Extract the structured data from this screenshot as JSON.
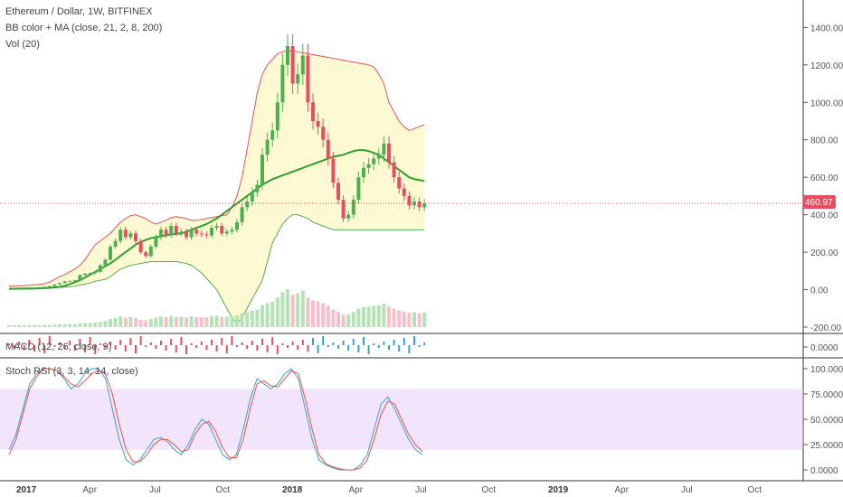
{
  "header": {
    "title": "Ethereum / Dollar, 1W, BITFINEX",
    "indicator_1": "BB color + MA (close, 21, 2, 8, 200)",
    "indicator_2": "Vol (20)"
  },
  "price_badge": {
    "value": "460.97",
    "color": "#e84e5f"
  },
  "colors": {
    "up": "#4caf50",
    "down": "#e84e5f",
    "ma": "#2e9e2e",
    "bb_upper": "#e84e5f",
    "bb_lower": "#4caf50",
    "bb_fill_yellow": "#fbf6b6",
    "bb_fill_pink": "#fce4ec",
    "dot_yellow": "#f4c20d",
    "dot_red": "#e84e5f",
    "dot_green": "#7dc855",
    "rsi_band": "#e3c9f8",
    "rsi_k": "#3a9fd8",
    "rsi_d": "#e8523b"
  },
  "main_axis": {
    "ticks": [
      "1400.00",
      "1200.00",
      "1000.00",
      "800.00",
      "600.00",
      "400.00",
      "200.00",
      "0.00",
      "-200.00"
    ]
  },
  "macd_panel": {
    "label": "MACD (12, 26, close, 9)",
    "tick": "0.0000"
  },
  "rsi_panel": {
    "label": "Stoch RSI (3, 3, 14, 14, close)",
    "ticks": [
      "100.0000",
      "75.0000",
      "50.0000",
      "25.0000",
      "0.0000"
    ]
  },
  "x_axis": {
    "labels": [
      "2017",
      "Apr",
      "Jul",
      "Oct",
      "2018",
      "Apr",
      "Jul",
      "Oct",
      "2019",
      "Apr",
      "Jul",
      "Oct"
    ],
    "bold": [
      "2017",
      "2018",
      "2019"
    ]
  },
  "chart_data": [
    {
      "type": "candlestick",
      "title": "Ethereum / Dollar, 1W, BITFINEX",
      "ylim": [
        -200,
        1450
      ],
      "x_start": "2017-01-02",
      "candle_interval": "1W",
      "close": [
        8,
        9,
        10,
        10.5,
        11,
        11.5,
        13,
        15,
        19,
        28,
        35,
        44,
        47,
        50,
        78,
        85,
        88,
        95,
        130,
        160,
        230,
        260,
        320,
        280,
        300,
        260,
        200,
        180,
        230,
        280,
        320,
        290,
        340,
        300,
        310,
        280,
        320,
        300,
        295,
        290,
        330,
        340,
        300,
        310,
        320,
        360,
        440,
        470,
        520,
        560,
        720,
        800,
        850,
        1000,
        1200,
        1300,
        1100,
        1150,
        1250,
        1000,
        900,
        870,
        800,
        700,
        570,
        480,
        380,
        400,
        480,
        600,
        650,
        670,
        700,
        720,
        780,
        680,
        600,
        540,
        500,
        450,
        470,
        440,
        460
      ],
      "bb_upper": [
        20,
        20,
        21,
        22,
        24,
        26,
        28,
        32,
        40,
        55,
        70,
        80,
        95,
        110,
        130,
        160,
        200,
        240,
        260,
        280,
        300,
        330,
        360,
        380,
        395,
        400,
        390,
        380,
        360,
        350,
        360,
        370,
        385,
        390,
        385,
        380,
        370,
        370,
        375,
        380,
        385,
        390,
        395,
        400,
        440,
        500,
        600,
        750,
        900,
        1050,
        1150,
        1200,
        1230,
        1260,
        1270,
        1275,
        1275,
        1270,
        1265,
        1260,
        1255,
        1250,
        1245,
        1240,
        1235,
        1230,
        1225,
        1220,
        1215,
        1210,
        1205,
        1200,
        1190,
        1150,
        1100,
        1000,
        950,
        900,
        870,
        850,
        860,
        870,
        880
      ],
      "bb_lower": [
        2,
        2,
        2.5,
        3,
        3.5,
        4,
        5,
        6,
        8,
        10,
        12,
        14,
        16,
        18,
        25,
        30,
        35,
        45,
        50,
        55,
        70,
        90,
        110,
        120,
        130,
        135,
        140,
        145,
        150,
        150,
        150,
        150,
        150,
        150,
        145,
        140,
        130,
        110,
        90,
        60,
        30,
        0,
        -50,
        -100,
        -150,
        -180,
        -150,
        -100,
        -50,
        0,
        50,
        150,
        250,
        300,
        350,
        380,
        400,
        400,
        390,
        380,
        360,
        350,
        340,
        330,
        320,
        320,
        320,
        320,
        320,
        320,
        320,
        320,
        320,
        320,
        320,
        320,
        320,
        320,
        320,
        320,
        320,
        320,
        320
      ],
      "ma": [
        5,
        5,
        5.5,
        6,
        6.5,
        7,
        7.5,
        8,
        10,
        12,
        15,
        20,
        30,
        40,
        50,
        65,
        80,
        95,
        110,
        125,
        140,
        160,
        180,
        200,
        220,
        240,
        255,
        265,
        275,
        280,
        285,
        290,
        295,
        298,
        300,
        310,
        320,
        330,
        340,
        350,
        365,
        380,
        400,
        420,
        440,
        460,
        480,
        500,
        520,
        540,
        560,
        575,
        590,
        600,
        610,
        620,
        630,
        640,
        650,
        660,
        670,
        680,
        690,
        700,
        710,
        715,
        720,
        730,
        740,
        745,
        745,
        740,
        730,
        720,
        700,
        680,
        660,
        640,
        620,
        600,
        590,
        585,
        580
      ],
      "current_price": 460.97
    },
    {
      "type": "bar",
      "title": "Vol (20)",
      "ylim": [
        0,
        1
      ]
    },
    {
      "type": "bar",
      "title": "MACD (12, 26, close, 9)",
      "ylim": [
        -1,
        1
      ]
    },
    {
      "type": "line",
      "title": "Stoch RSI (3, 3, 14, 14, close)",
      "ylim": [
        0,
        100
      ],
      "band": [
        20,
        80
      ],
      "series": [
        {
          "values": [
            20,
            35,
            60,
            85,
            95,
            100,
            100,
            98,
            90,
            80,
            85,
            95,
            100,
            100,
            90,
            60,
            30,
            10,
            5,
            10,
            20,
            30,
            32,
            28,
            20,
            15,
            25,
            40,
            50,
            45,
            30,
            15,
            10,
            15,
            40,
            70,
            90,
            85,
            80,
            85,
            95,
            100,
            90,
            60,
            30,
            10,
            5,
            2,
            0,
            0,
            0,
            5,
            15,
            40,
            65,
            72,
            60,
            45,
            30,
            20,
            15
          ]
        },
        {
          "values": [
            15,
            30,
            55,
            80,
            92,
            100,
            100,
            98,
            92,
            85,
            82,
            88,
            95,
            98,
            95,
            75,
            45,
            20,
            8,
            8,
            15,
            25,
            30,
            30,
            25,
            18,
            20,
            35,
            45,
            48,
            38,
            22,
            12,
            12,
            30,
            60,
            85,
            88,
            83,
            82,
            90,
            98,
            95,
            70,
            40,
            15,
            6,
            3,
            1,
            0,
            0,
            2,
            10,
            30,
            55,
            68,
            65,
            50,
            35,
            25,
            18
          ]
        }
      ]
    }
  ]
}
